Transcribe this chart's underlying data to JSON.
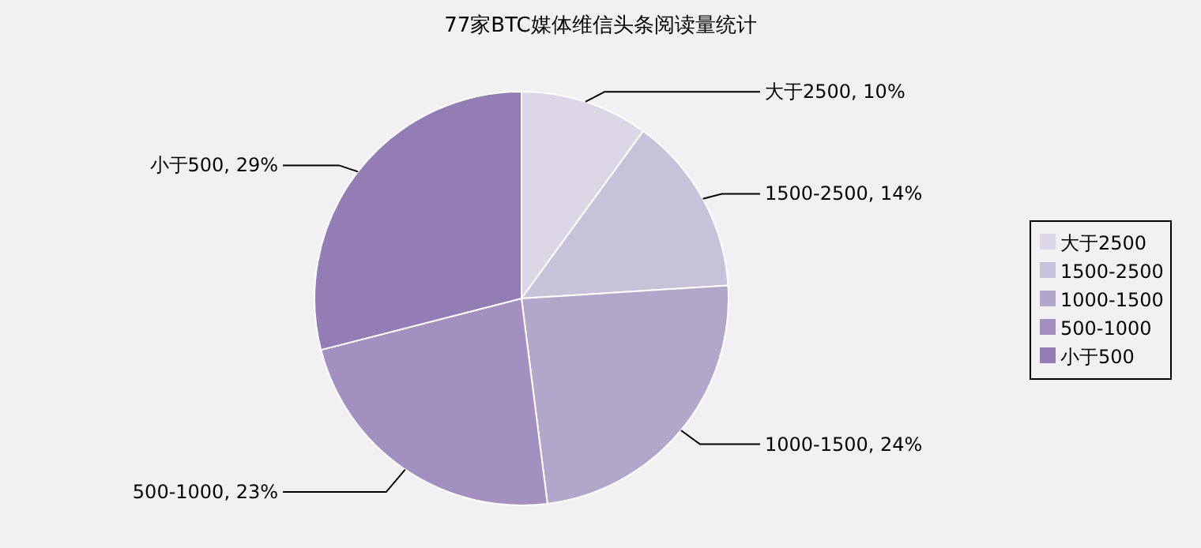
{
  "chart_data": {
    "type": "pie",
    "title": "77家BTC媒体维信头条阅读量统计",
    "categories": [
      "大于2500",
      "1500-2500",
      "1000-1500",
      "500-1000",
      "小于500"
    ],
    "values": [
      10,
      14,
      24,
      23,
      29
    ],
    "colors": [
      "#dcd6e6",
      "#c8c1da",
      "#b3a6cb",
      "#a38fc0",
      "#937db4"
    ],
    "value_labels": [
      "大于2500, 10%",
      "1500-2500, 14%",
      "1000-1500, 24%",
      "500-1000, 23%",
      "小于500, 29%"
    ],
    "legend": "right"
  }
}
